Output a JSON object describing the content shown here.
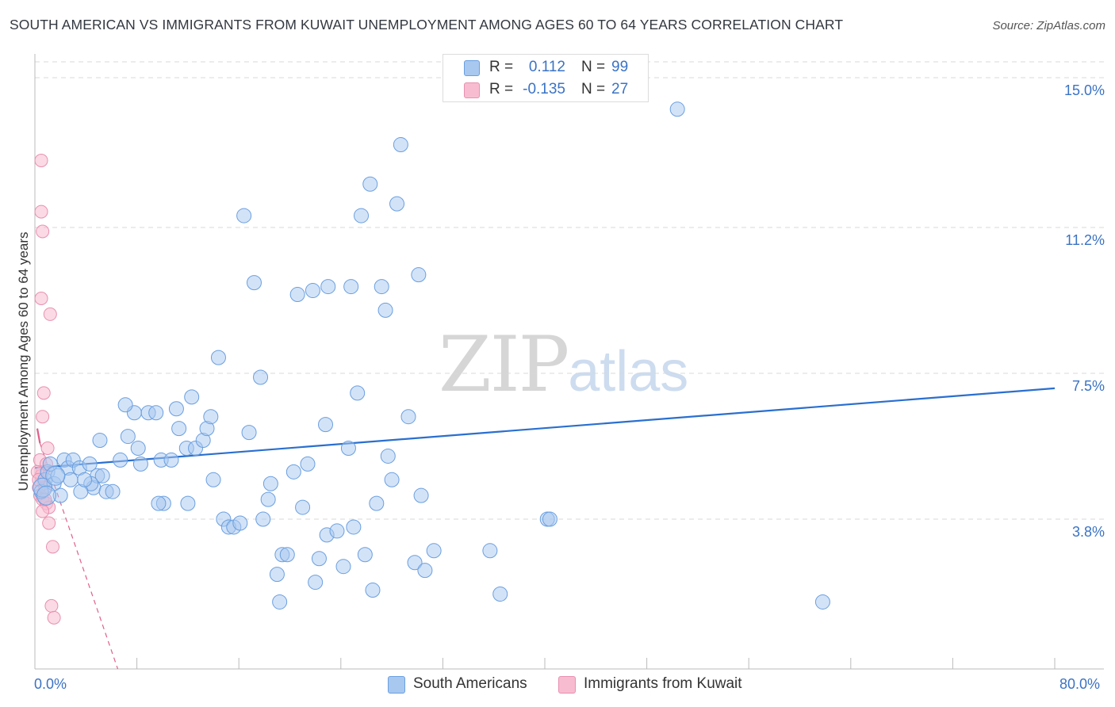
{
  "title": "SOUTH AMERICAN VS IMMIGRANTS FROM KUWAIT UNEMPLOYMENT AMONG AGES 60 TO 64 YEARS CORRELATION CHART",
  "source": "Source: ZipAtlas.com",
  "watermark": {
    "zip": "ZIP",
    "atlas": "atlas"
  },
  "legend": {
    "rows": [
      {
        "r_label": "R =",
        "r_value": "0.112",
        "n_label": "N =",
        "n_value": "99"
      },
      {
        "r_label": "R =",
        "r_value": "-0.135",
        "n_label": "N =",
        "n_value": "27"
      }
    ]
  },
  "colors": {
    "blue_fill": "#a8c8f0",
    "blue_stroke": "#6a9fe0",
    "blue_line": "#2a6fcf",
    "pink_fill": "#f8bcd0",
    "pink_stroke": "#e890b0",
    "pink_line": "#e0608a",
    "grid": "#d8d8d8",
    "axis_text": "#3a73c4"
  },
  "chart_data": {
    "type": "scatter",
    "title": "SOUTH AMERICAN VS IMMIGRANTS FROM KUWAIT UNEMPLOYMENT AMONG AGES 60 TO 64 YEARS CORRELATION CHART",
    "xlabel": "",
    "ylabel": "Unemployment Among Ages 60 to 64 years",
    "xlim": [
      0,
      80
    ],
    "ylim": [
      0,
      15.5
    ],
    "x_tick_labels": [
      "0.0%",
      "80.0%"
    ],
    "y_ticks": [
      3.8,
      7.5,
      11.2,
      15.0
    ],
    "y_tick_labels": [
      "3.8%",
      "7.5%",
      "11.2%",
      "15.0%"
    ],
    "grid": true,
    "series": [
      {
        "name": "South Americans",
        "color": "blue",
        "r": 0.112,
        "n": 99,
        "trend": {
          "x": [
            0.0,
            80.0
          ],
          "y": [
            5.1,
            7.12
          ]
        },
        "points": [
          [
            0.5,
            4.5
          ],
          [
            0.8,
            4.8
          ],
          [
            1.0,
            5.0
          ],
          [
            1.2,
            5.2
          ],
          [
            1.5,
            4.7
          ],
          [
            2.0,
            4.4
          ],
          [
            2.3,
            5.3
          ],
          [
            2.6,
            5.1
          ],
          [
            3.0,
            5.3
          ],
          [
            3.5,
            5.1
          ],
          [
            4.3,
            5.2
          ],
          [
            4.6,
            4.6
          ],
          [
            4.9,
            4.9
          ],
          [
            5.3,
            4.9
          ],
          [
            5.6,
            4.5
          ],
          [
            6.1,
            4.5
          ],
          [
            5.1,
            5.8
          ],
          [
            7.3,
            5.9
          ],
          [
            8.1,
            5.6
          ],
          [
            8.3,
            5.2
          ],
          [
            7.8,
            6.5
          ],
          [
            8.9,
            6.5
          ],
          [
            9.5,
            6.5
          ],
          [
            9.9,
            5.3
          ],
          [
            10.7,
            5.3
          ],
          [
            11.1,
            6.6
          ],
          [
            11.3,
            6.1
          ],
          [
            11.9,
            5.6
          ],
          [
            12.3,
            6.9
          ],
          [
            12.6,
            5.6
          ],
          [
            13.2,
            5.8
          ],
          [
            13.5,
            6.1
          ],
          [
            14.0,
            4.8
          ],
          [
            14.4,
            7.9
          ],
          [
            14.8,
            3.8
          ],
          [
            15.2,
            3.6
          ],
          [
            15.6,
            3.6
          ],
          [
            16.1,
            3.7
          ],
          [
            16.4,
            11.5
          ],
          [
            16.8,
            6.0
          ],
          [
            17.2,
            9.8
          ],
          [
            17.7,
            7.4
          ],
          [
            17.9,
            3.8
          ],
          [
            18.3,
            4.3
          ],
          [
            18.5,
            4.7
          ],
          [
            19.0,
            2.4
          ],
          [
            19.4,
            2.9
          ],
          [
            19.8,
            2.9
          ],
          [
            20.3,
            5.0
          ],
          [
            20.6,
            9.5
          ],
          [
            21.0,
            4.1
          ],
          [
            21.4,
            5.2
          ],
          [
            21.8,
            9.6
          ],
          [
            22.3,
            2.8
          ],
          [
            22.8,
            6.2
          ],
          [
            22.9,
            3.4
          ],
          [
            23.0,
            9.7
          ],
          [
            23.7,
            3.5
          ],
          [
            24.2,
            2.6
          ],
          [
            24.6,
            5.6
          ],
          [
            24.8,
            9.7
          ],
          [
            25.0,
            3.6
          ],
          [
            25.3,
            7.0
          ],
          [
            25.6,
            11.5
          ],
          [
            25.9,
            2.9
          ],
          [
            26.3,
            12.3
          ],
          [
            26.5,
            2.0
          ],
          [
            26.8,
            4.2
          ],
          [
            27.2,
            9.7
          ],
          [
            27.5,
            9.1
          ],
          [
            27.7,
            5.4
          ],
          [
            28.0,
            4.8
          ],
          [
            28.4,
            11.8
          ],
          [
            28.7,
            13.3
          ],
          [
            29.3,
            6.4
          ],
          [
            29.8,
            2.7
          ],
          [
            30.1,
            10.0
          ],
          [
            30.3,
            4.4
          ],
          [
            31.3,
            3.0
          ],
          [
            35.7,
            3.0
          ],
          [
            36.5,
            1.9
          ],
          [
            40.2,
            3.8
          ],
          [
            40.4,
            3.8
          ],
          [
            50.4,
            14.2
          ],
          [
            61.8,
            1.7
          ],
          [
            4.4,
            4.7
          ],
          [
            3.6,
            4.5
          ],
          [
            3.9,
            4.8
          ],
          [
            10.1,
            4.2
          ],
          [
            9.7,
            4.2
          ],
          [
            6.7,
            5.3
          ],
          [
            7.1,
            6.7
          ],
          [
            13.8,
            6.4
          ],
          [
            12.0,
            4.2
          ],
          [
            19.2,
            1.7
          ],
          [
            22.0,
            2.2
          ],
          [
            30.6,
            2.5
          ],
          [
            2.8,
            4.8
          ],
          [
            1.8,
            4.9
          ]
        ]
      },
      {
        "name": "Immigrants from Kuwait",
        "color": "pink",
        "r": -0.135,
        "n": 27,
        "trend": {
          "x": [
            0.0,
            6.5
          ],
          "y": [
            6.1,
            0.0
          ]
        },
        "trend_solid_until_x": 0.4,
        "points": [
          [
            0.5,
            12.9
          ],
          [
            0.5,
            11.6
          ],
          [
            0.6,
            11.1
          ],
          [
            0.5,
            9.4
          ],
          [
            1.2,
            9.0
          ],
          [
            0.7,
            7.0
          ],
          [
            0.6,
            6.4
          ],
          [
            1.0,
            5.6
          ],
          [
            0.4,
            5.3
          ],
          [
            0.6,
            5.0
          ],
          [
            0.7,
            4.7
          ],
          [
            0.3,
            4.6
          ],
          [
            0.4,
            4.4
          ],
          [
            0.5,
            4.9
          ],
          [
            0.8,
            4.6
          ],
          [
            0.9,
            5.2
          ],
          [
            0.2,
            5.0
          ],
          [
            0.6,
            4.3
          ],
          [
            0.9,
            4.2
          ],
          [
            1.1,
            4.1
          ],
          [
            1.1,
            3.7
          ],
          [
            1.4,
            3.1
          ],
          [
            1.3,
            1.6
          ],
          [
            1.5,
            1.3
          ],
          [
            0.6,
            4.0
          ],
          [
            0.3,
            4.8
          ],
          [
            0.8,
            4.3
          ]
        ]
      }
    ]
  },
  "bottom_legend": [
    {
      "label": "South Americans"
    },
    {
      "label": "Immigrants from Kuwait"
    }
  ]
}
